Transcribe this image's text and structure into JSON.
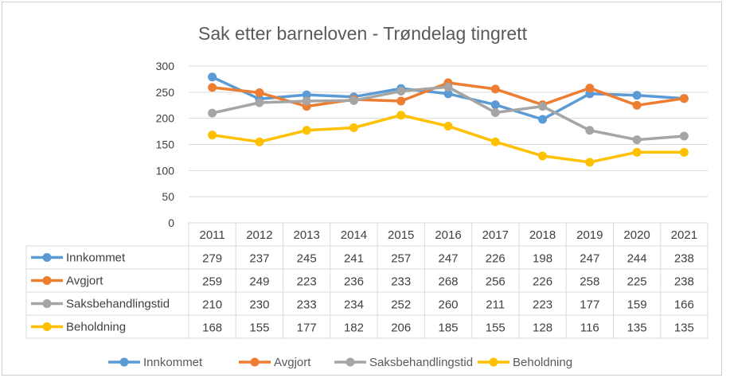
{
  "chart_data": {
    "type": "line",
    "title": "Sak etter barneloven - Trøndelag tingrett",
    "categories": [
      "2011",
      "2012",
      "2013",
      "2014",
      "2015",
      "2016",
      "2017",
      "2018",
      "2019",
      "2020",
      "2021"
    ],
    "ylim": [
      0,
      300
    ],
    "yticks": [
      0,
      50,
      100,
      150,
      200,
      250,
      300
    ],
    "grid": true,
    "legend_position": "bottom",
    "data_table": true,
    "series": [
      {
        "name": "Innkommet",
        "color": "#5B9BD5",
        "values": [
          279,
          237,
          245,
          241,
          257,
          247,
          226,
          198,
          247,
          244,
          238
        ]
      },
      {
        "name": "Avgjort",
        "color": "#ED7D31",
        "values": [
          259,
          249,
          223,
          236,
          233,
          268,
          256,
          226,
          258,
          225,
          238
        ]
      },
      {
        "name": "Saksbehandlingstid",
        "color": "#A5A5A5",
        "values": [
          210,
          230,
          233,
          234,
          252,
          260,
          211,
          223,
          177,
          159,
          166
        ]
      },
      {
        "name": "Beholdning",
        "color": "#FFC000",
        "values": [
          168,
          155,
          177,
          182,
          206,
          185,
          155,
          128,
          116,
          135,
          135
        ]
      }
    ]
  }
}
